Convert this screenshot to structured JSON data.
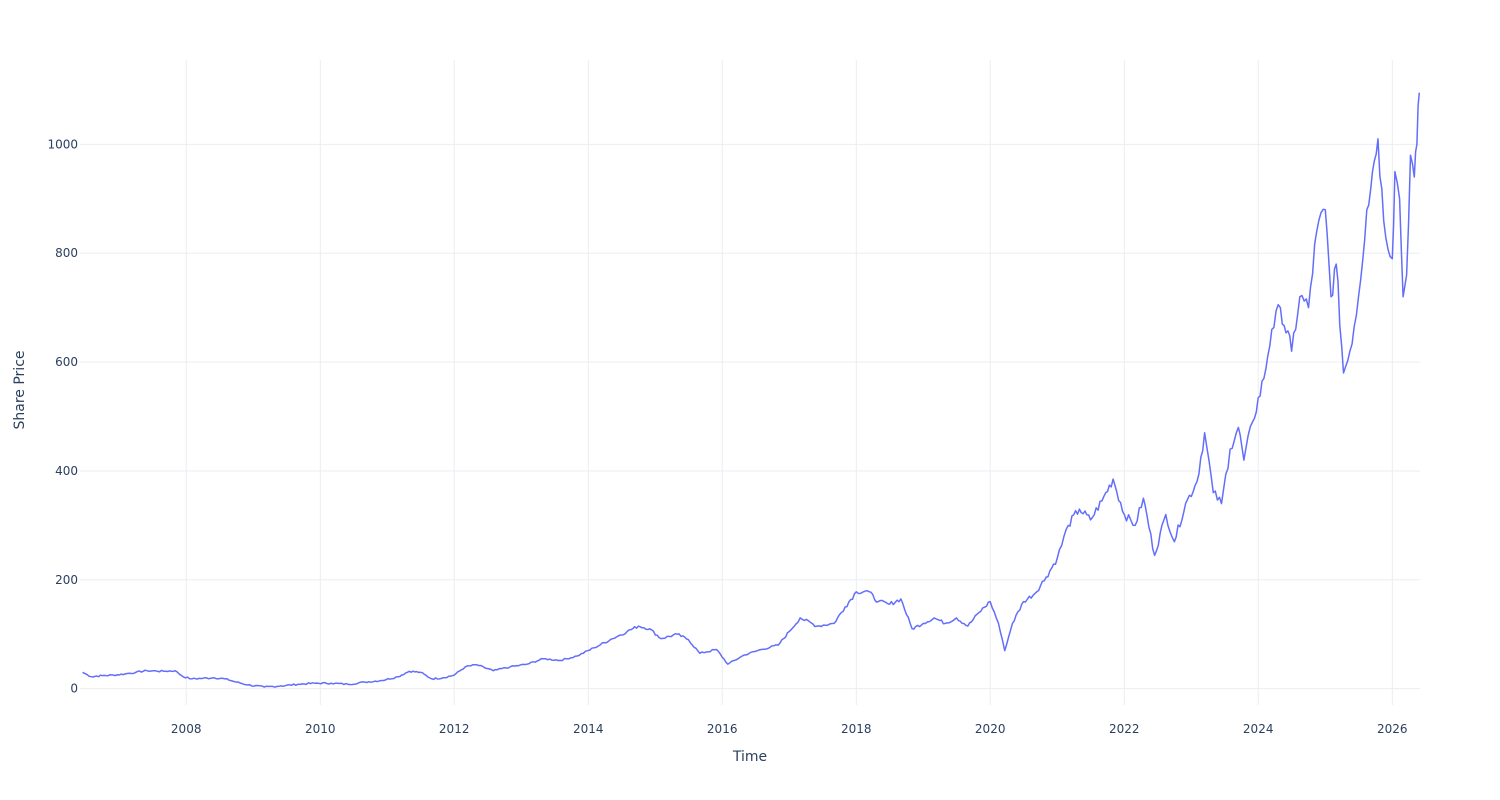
{
  "chart_data": {
    "type": "line",
    "title": "",
    "xlabel": "Time",
    "ylabel": "Share Price",
    "grid": true,
    "legend": "none",
    "xlim": [
      "2006-06-01",
      "2026-06-01"
    ],
    "ylim": [
      -30,
      1155
    ],
    "x_ticks": [
      "2008",
      "2010",
      "2012",
      "2014",
      "2016",
      "2018",
      "2020",
      "2022",
      "2024",
      "2026"
    ],
    "y_ticks": [
      0,
      200,
      400,
      600,
      800,
      1000
    ],
    "series": [
      {
        "name": "",
        "color": "#636efa",
        "points": [
          [
            "2006-06-15",
            30
          ],
          [
            "2006-08-01",
            22
          ],
          [
            "2006-10-01",
            24
          ],
          [
            "2006-12-01",
            25
          ],
          [
            "2007-02-01",
            27
          ],
          [
            "2007-04-01",
            30
          ],
          [
            "2007-06-01",
            33
          ],
          [
            "2007-09-01",
            32
          ],
          [
            "2007-11-01",
            33
          ],
          [
            "2007-12-15",
            22
          ],
          [
            "2008-02-01",
            18
          ],
          [
            "2008-04-01",
            19
          ],
          [
            "2008-06-01",
            20
          ],
          [
            "2008-08-01",
            18
          ],
          [
            "2008-10-01",
            12
          ],
          [
            "2008-12-01",
            7
          ],
          [
            "2009-03-01",
            3
          ],
          [
            "2009-06-01",
            5
          ],
          [
            "2009-09-01",
            8
          ],
          [
            "2009-12-01",
            10
          ],
          [
            "2010-03-01",
            10
          ],
          [
            "2010-06-01",
            8
          ],
          [
            "2010-09-01",
            12
          ],
          [
            "2010-12-01",
            15
          ],
          [
            "2011-03-01",
            22
          ],
          [
            "2011-05-01",
            32
          ],
          [
            "2011-07-01",
            30
          ],
          [
            "2011-09-01",
            18
          ],
          [
            "2011-11-01",
            20
          ],
          [
            "2012-01-01",
            25
          ],
          [
            "2012-03-01",
            40
          ],
          [
            "2012-05-01",
            44
          ],
          [
            "2012-08-01",
            33
          ],
          [
            "2012-11-01",
            40
          ],
          [
            "2013-02-01",
            45
          ],
          [
            "2013-05-01",
            55
          ],
          [
            "2013-08-01",
            52
          ],
          [
            "2013-11-01",
            60
          ],
          [
            "2014-02-01",
            75
          ],
          [
            "2014-05-01",
            90
          ],
          [
            "2014-08-01",
            105
          ],
          [
            "2014-10-01",
            115
          ],
          [
            "2014-12-01",
            110
          ],
          [
            "2015-02-01",
            92
          ],
          [
            "2015-05-01",
            100
          ],
          [
            "2015-07-01",
            90
          ],
          [
            "2015-09-01",
            65
          ],
          [
            "2015-12-01",
            72
          ],
          [
            "2016-02-01",
            45
          ],
          [
            "2016-05-01",
            62
          ],
          [
            "2016-08-01",
            72
          ],
          [
            "2016-11-01",
            80
          ],
          [
            "2017-01-01",
            105
          ],
          [
            "2017-03-01",
            130
          ],
          [
            "2017-06-01",
            115
          ],
          [
            "2017-09-01",
            120
          ],
          [
            "2017-11-01",
            150
          ],
          [
            "2018-01-01",
            178
          ],
          [
            "2018-03-01",
            180
          ],
          [
            "2018-05-01",
            160
          ],
          [
            "2018-07-01",
            155
          ],
          [
            "2018-09-01",
            165
          ],
          [
            "2018-11-01",
            110
          ],
          [
            "2019-01-01",
            120
          ],
          [
            "2019-03-01",
            130
          ],
          [
            "2019-05-01",
            120
          ],
          [
            "2019-07-01",
            130
          ],
          [
            "2019-09-01",
            115
          ],
          [
            "2019-11-01",
            140
          ],
          [
            "2020-01-01",
            160
          ],
          [
            "2020-02-15",
            120
          ],
          [
            "2020-03-20",
            70
          ],
          [
            "2020-05-01",
            120
          ],
          [
            "2020-07-01",
            160
          ],
          [
            "2020-09-01",
            175
          ],
          [
            "2020-11-01",
            205
          ],
          [
            "2021-01-01",
            240
          ],
          [
            "2021-03-01",
            300
          ],
          [
            "2021-05-01",
            330
          ],
          [
            "2021-07-01",
            310
          ],
          [
            "2021-09-01",
            345
          ],
          [
            "2021-11-01",
            385
          ],
          [
            "2022-01-01",
            320
          ],
          [
            "2022-03-01",
            300
          ],
          [
            "2022-04-15",
            350
          ],
          [
            "2022-06-15",
            245
          ],
          [
            "2022-08-15",
            320
          ],
          [
            "2022-10-01",
            270
          ],
          [
            "2022-12-01",
            340
          ],
          [
            "2023-02-01",
            380
          ],
          [
            "2023-03-15",
            470
          ],
          [
            "2023-05-01",
            360
          ],
          [
            "2023-06-15",
            340
          ],
          [
            "2023-08-01",
            440
          ],
          [
            "2023-09-15",
            480
          ],
          [
            "2023-10-15",
            420
          ],
          [
            "2023-12-01",
            490
          ],
          [
            "2024-02-01",
            570
          ],
          [
            "2024-03-15",
            660
          ],
          [
            "2024-05-01",
            700
          ],
          [
            "2024-07-01",
            620
          ],
          [
            "2024-08-15",
            720
          ],
          [
            "2024-10-01",
            700
          ],
          [
            "2024-11-15",
            840
          ],
          [
            "2025-01-01",
            880
          ],
          [
            "2025-02-01",
            720
          ],
          [
            "2025-03-01",
            780
          ],
          [
            "2025-04-10",
            580
          ],
          [
            "2025-05-15",
            620
          ],
          [
            "2025-07-01",
            720
          ],
          [
            "2025-08-15",
            880
          ],
          [
            "2025-09-15",
            950
          ],
          [
            "2025-10-15",
            1010
          ],
          [
            "2025-11-15",
            860
          ],
          [
            "2026-01-01",
            790
          ],
          [
            "2026-01-15",
            950
          ],
          [
            "2026-02-10",
            900
          ],
          [
            "2026-03-01",
            720
          ],
          [
            "2026-03-20",
            760
          ],
          [
            "2026-04-10",
            980
          ],
          [
            "2026-05-01",
            940
          ],
          [
            "2026-05-15",
            1000
          ],
          [
            "2026-05-28",
            1095
          ]
        ]
      }
    ]
  }
}
